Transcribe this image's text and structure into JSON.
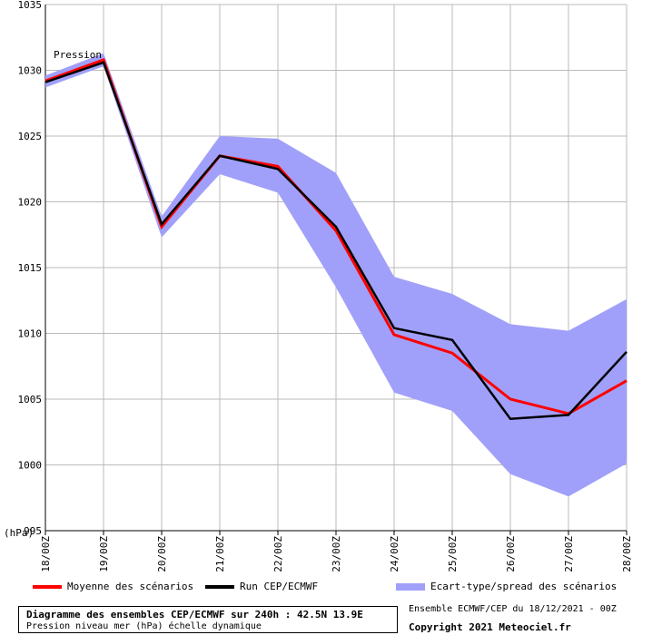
{
  "chart_data": {
    "type": "line",
    "series_label": "Pression",
    "y_unit_label": "(hPa)",
    "categories": [
      "18/00Z",
      "19/00Z",
      "20/00Z",
      "21/00Z",
      "22/00Z",
      "23/00Z",
      "24/00Z",
      "25/00Z",
      "26/00Z",
      "27/00Z",
      "28/00Z"
    ],
    "ylim": [
      995,
      1035
    ],
    "yticks": [
      995,
      1000,
      1005,
      1010,
      1015,
      1020,
      1025,
      1030,
      1035
    ],
    "grid": true,
    "series": [
      {
        "name": "Moyenne des scénarios",
        "color": "#ff0000",
        "values": [
          1029.2,
          1030.8,
          1018.1,
          1023.5,
          1022.7,
          1017.8,
          1009.9,
          1008.5,
          1005.0,
          1003.9,
          1006.4
        ]
      },
      {
        "name": "Run CEP/ECMWF",
        "color": "#000000",
        "values": [
          1029.1,
          1030.6,
          1018.3,
          1023.5,
          1022.5,
          1018.1,
          1010.4,
          1009.5,
          1003.5,
          1003.8,
          1008.6
        ]
      }
    ],
    "spread": {
      "name": "Ecart-type/spread des scénarios",
      "color": "#a0a0fa",
      "upper": [
        1029.6,
        1031.3,
        1018.9,
        1025.0,
        1024.8,
        1022.2,
        1014.3,
        1013.0,
        1010.7,
        1010.2,
        1012.6
      ],
      "lower": [
        1028.7,
        1030.3,
        1017.3,
        1022.1,
        1020.7,
        1013.5,
        1005.5,
        1004.1,
        999.3,
        997.6,
        1000.1
      ]
    }
  },
  "legend": {
    "mean_label": "Moyenne des scénarios",
    "run_label": "Run CEP/ECMWF",
    "spread_label": "Ecart-type/spread des scénarios"
  },
  "caption": {
    "title": "Diagramme des ensembles CEP/ECMWF sur 240h : 42.5N 13.9E",
    "subtitle": "Pression niveau mer (hPa) échelle dynamique"
  },
  "source": "Ensemble ECMWF/CEP du 18/12/2021 - 00Z",
  "copyright": "Copyright 2021 Meteociel.fr",
  "colors": {
    "grid": "#bbbbbb",
    "mean": "#ff0000",
    "run": "#000000",
    "spread": "#a0a0fa"
  }
}
